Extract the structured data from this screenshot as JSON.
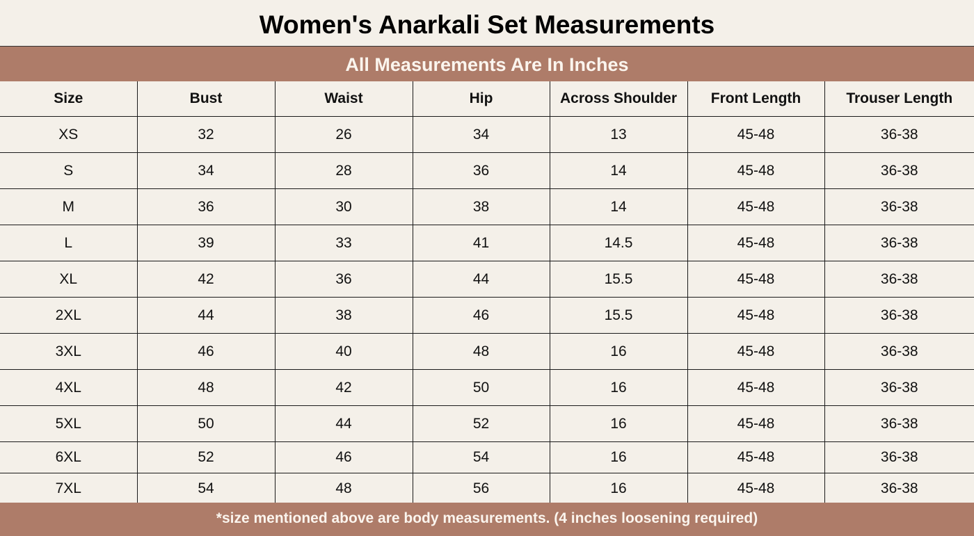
{
  "title": "Women's Anarkali Set Measurements",
  "subtitle": "All Measurements Are In Inches",
  "colors": {
    "band": "#ae7c69",
    "background": "#f4f0e9",
    "band_text": "#fbf5ee"
  },
  "table": {
    "headers": [
      "Size",
      "Bust",
      "Waist",
      "Hip",
      "Across Shoulder",
      "Front Length",
      "Trouser Length"
    ],
    "rows": [
      [
        "XS",
        "32",
        "26",
        "34",
        "13",
        "45-48",
        "36-38"
      ],
      [
        "S",
        "34",
        "28",
        "36",
        "14",
        "45-48",
        "36-38"
      ],
      [
        "M",
        "36",
        "30",
        "38",
        "14",
        "45-48",
        "36-38"
      ],
      [
        "L",
        "39",
        "33",
        "41",
        "14.5",
        "45-48",
        "36-38"
      ],
      [
        "XL",
        "42",
        "36",
        "44",
        "15.5",
        "45-48",
        "36-38"
      ],
      [
        "2XL",
        "44",
        "38",
        "46",
        "15.5",
        "45-48",
        "36-38"
      ],
      [
        "3XL",
        "46",
        "40",
        "48",
        "16",
        "45-48",
        "36-38"
      ],
      [
        "4XL",
        "48",
        "42",
        "50",
        "16",
        "45-48",
        "36-38"
      ],
      [
        "5XL",
        "50",
        "44",
        "52",
        "16",
        "45-48",
        "36-38"
      ],
      [
        "6XL",
        "52",
        "46",
        "54",
        "16",
        "45-48",
        "36-38"
      ],
      [
        "7XL",
        "54",
        "48",
        "56",
        "16",
        "45-48",
        "36-38"
      ]
    ]
  },
  "footnote": "*size mentioned above are body measurements. (4 inches loosening required)"
}
